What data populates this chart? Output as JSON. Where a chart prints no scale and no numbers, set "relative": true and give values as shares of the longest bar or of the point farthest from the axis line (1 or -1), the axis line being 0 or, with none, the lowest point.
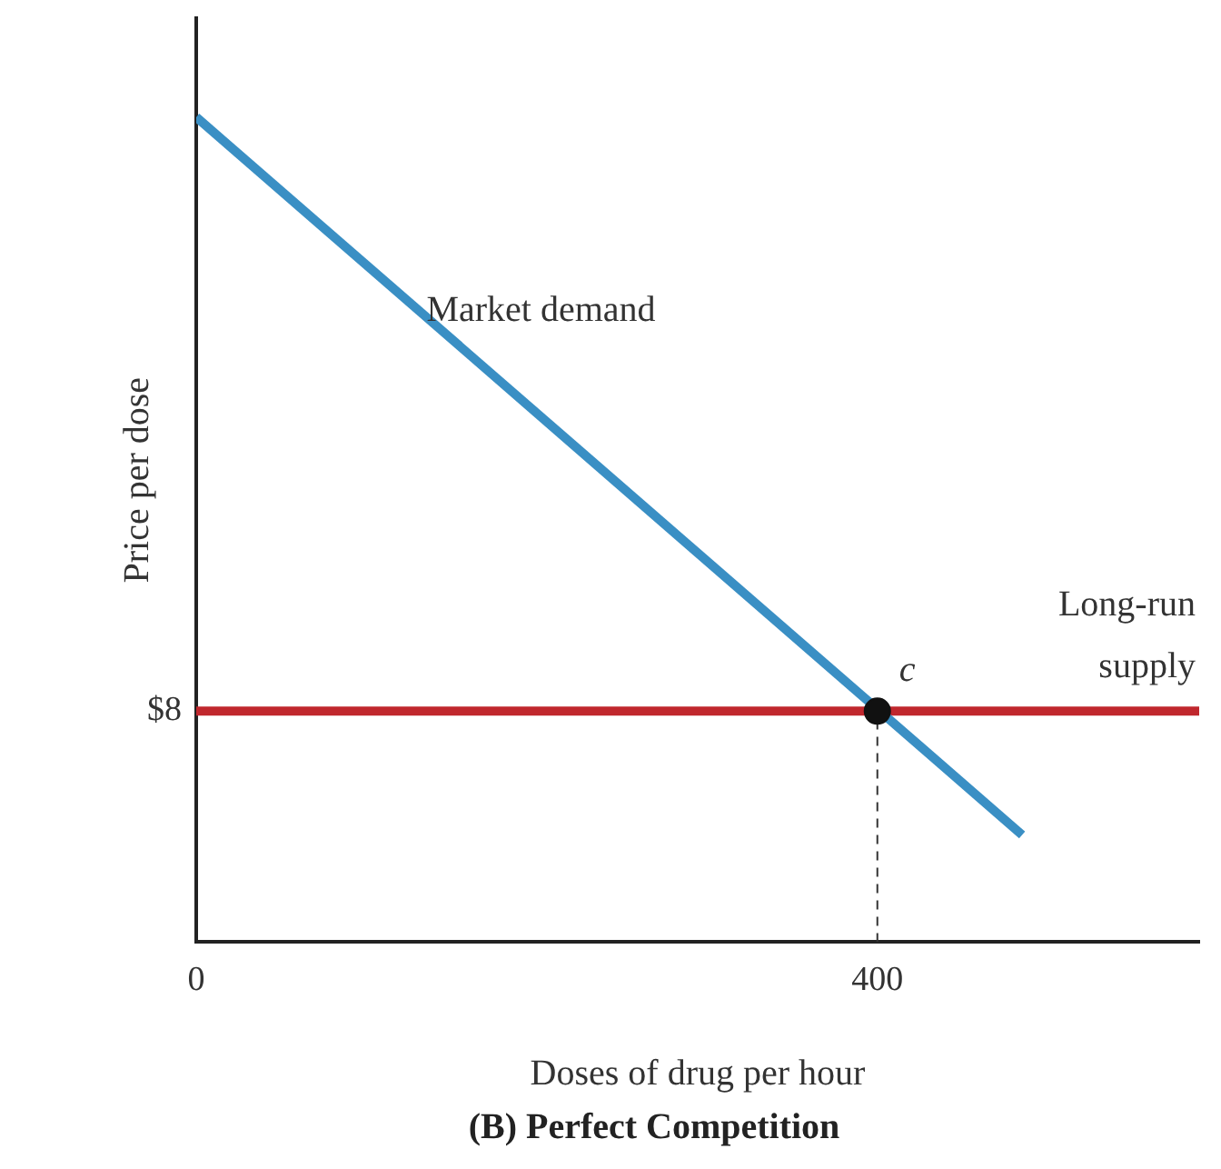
{
  "chart_data": {
    "type": "line",
    "title": "(B) Perfect Competition",
    "xlabel": "Doses of drug per hour",
    "ylabel": "Price per dose",
    "xlim": [
      0,
      589
    ],
    "xticks": [
      0,
      400
    ],
    "relative": true,
    "grid": false,
    "legend": false,
    "marker": "none",
    "series": [
      {
        "name": "Market demand",
        "type": "line",
        "color": "#3a8fc4",
        "x": [
          0,
          485
        ],
        "values": [
          1,
          0.13
        ]
      },
      {
        "name": "Long-run supply",
        "type": "line",
        "color": "#c0272d",
        "x": [
          0,
          589
        ],
        "values": [
          0.28,
          0.28
        ]
      },
      {
        "type": "line",
        "color": "#333333",
        "line_style": "dashed",
        "x": [
          400,
          400
        ],
        "values": [
          0,
          0.28
        ]
      },
      {
        "type": "scatter",
        "color": "#111111",
        "marker": "circle",
        "x": [
          400
        ],
        "values": [
          0.28
        ]
      }
    ],
    "annotations": [
      {
        "text": "c",
        "x": 400,
        "y": 0.28
      },
      "$8"
    ]
  }
}
